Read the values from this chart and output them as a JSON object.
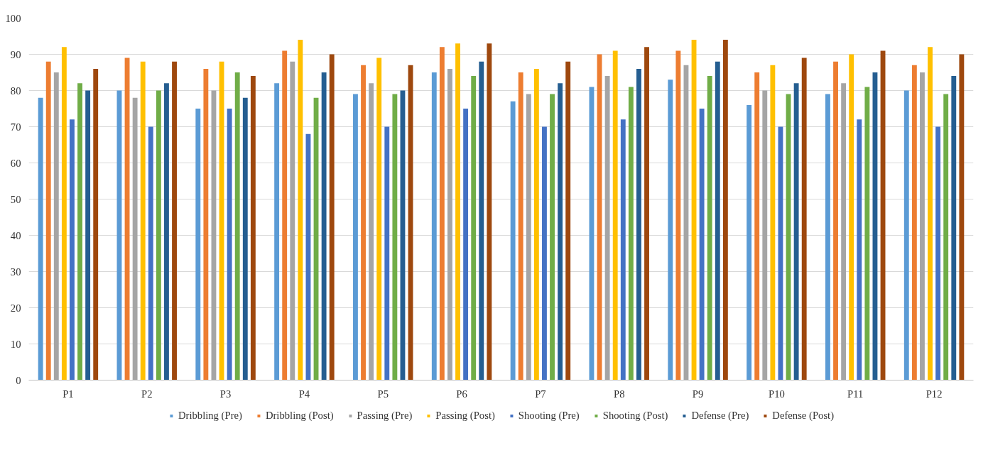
{
  "chart_data": {
    "type": "bar",
    "categories": [
      "P1",
      "P2",
      "P3",
      "P4",
      "P5",
      "P6",
      "P7",
      "P8",
      "P9",
      "P10",
      "P11",
      "P12"
    ],
    "series": [
      {
        "name": "Dribbling (Pre)",
        "color": "#5b9bd5",
        "values": [
          78,
          80,
          75,
          82,
          79,
          85,
          77,
          81,
          83,
          76,
          79,
          80
        ]
      },
      {
        "name": "Dribbling (Post)",
        "color": "#ed7d31",
        "values": [
          88,
          89,
          86,
          91,
          87,
          92,
          85,
          90,
          91,
          85,
          88,
          87
        ]
      },
      {
        "name": "Passing (Pre)",
        "color": "#a5a5a5",
        "values": [
          85,
          78,
          80,
          88,
          82,
          86,
          79,
          84,
          87,
          80,
          82,
          85
        ]
      },
      {
        "name": "Passing (Post)",
        "color": "#ffc000",
        "values": [
          92,
          88,
          88,
          94,
          89,
          93,
          86,
          91,
          94,
          87,
          90,
          92
        ]
      },
      {
        "name": "Shooting (Pre)",
        "color": "#4472c4",
        "values": [
          72,
          70,
          75,
          68,
          70,
          75,
          70,
          72,
          75,
          70,
          72,
          70
        ]
      },
      {
        "name": "Shooting (Post)",
        "color": "#70ad47",
        "values": [
          82,
          80,
          85,
          78,
          79,
          84,
          79,
          81,
          84,
          79,
          81,
          79
        ]
      },
      {
        "name": "Defense (Pre)",
        "color": "#255e91",
        "values": [
          80,
          82,
          78,
          85,
          80,
          88,
          82,
          86,
          88,
          82,
          85,
          84
        ]
      },
      {
        "name": "Defense (Post)",
        "color": "#9e480e",
        "values": [
          86,
          88,
          84,
          90,
          87,
          93,
          88,
          92,
          94,
          89,
          91,
          90
        ]
      }
    ],
    "ylim": [
      0,
      100
    ],
    "yticks": [
      0,
      10,
      20,
      30,
      40,
      50,
      60,
      70,
      80,
      90,
      100
    ],
    "grid": "y",
    "legend": "bottom"
  }
}
